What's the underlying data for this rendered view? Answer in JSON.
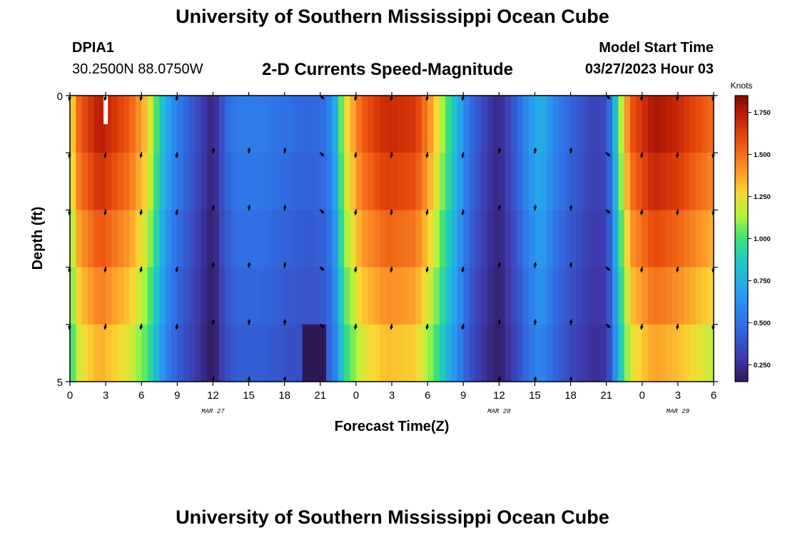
{
  "header": {
    "title": "University of Southern Mississippi Ocean Cube",
    "station_id": "DPIA1",
    "station_coords": "30.2500N  88.0750W",
    "chart_subtitle": "2-D Currents Speed-Magnitude",
    "model_start_label": "Model Start Time",
    "model_start_value": "03/27/2023 Hour 03"
  },
  "footer": {
    "title": "University of Southern Mississippi Ocean Cube"
  },
  "chart_data": {
    "type": "heatmap",
    "title": "2-D Currents Speed-Magnitude",
    "xlabel": "Forecast Time(Z)",
    "ylabel": "Depth (ft)",
    "x_hours": [
      0,
      3,
      6,
      9,
      12,
      15,
      18,
      21,
      24,
      27,
      30,
      33,
      36,
      39,
      42,
      45,
      48,
      51,
      54
    ],
    "xtick_labels": [
      "0",
      "3",
      "6",
      "9",
      "12",
      "15",
      "18",
      "21",
      "0",
      "3",
      "6",
      "9",
      "12",
      "15",
      "18",
      "21",
      "0",
      "3",
      "6"
    ],
    "date_labels": [
      {
        "text": "MAR 27",
        "hour": 12
      },
      {
        "text": "MAR 28",
        "hour": 36
      },
      {
        "text": "MAR 29",
        "hour": 51
      }
    ],
    "ylim": [
      0,
      5
    ],
    "ytick_labels": [
      "0",
      "5"
    ],
    "depth_levels": 5,
    "colorbar": {
      "label": "Knots",
      "min": 0.15,
      "max": 1.85,
      "ticks": [
        0.25,
        0.5,
        0.75,
        1.0,
        1.25,
        1.5,
        1.75
      ],
      "tick_labels": [
        "0.250",
        "0.500",
        "0.750",
        "1.000",
        "1.250",
        "1.500",
        "1.750"
      ]
    },
    "time_speed_knots": [
      {
        "t": 0.0,
        "s": 1.2
      },
      {
        "t": 0.8,
        "s": 1.55
      },
      {
        "t": 2.5,
        "s": 1.75
      },
      {
        "t": 5.0,
        "s": 1.55
      },
      {
        "t": 6.5,
        "s": 1.3
      },
      {
        "t": 7.3,
        "s": 1.0
      },
      {
        "t": 8.0,
        "s": 0.75
      },
      {
        "t": 9.0,
        "s": 0.55
      },
      {
        "t": 10.5,
        "s": 0.38
      },
      {
        "t": 11.5,
        "s": 0.25
      },
      {
        "t": 12.0,
        "s": 0.2
      },
      {
        "t": 13.0,
        "s": 0.45
      },
      {
        "t": 14.0,
        "s": 0.55
      },
      {
        "t": 16.0,
        "s": 0.55
      },
      {
        "t": 18.0,
        "s": 0.5
      },
      {
        "t": 20.0,
        "s": 0.46
      },
      {
        "t": 21.5,
        "s": 0.5
      },
      {
        "t": 22.3,
        "s": 0.75
      },
      {
        "t": 23.0,
        "s": 1.2
      },
      {
        "t": 24.5,
        "s": 1.55
      },
      {
        "t": 26.5,
        "s": 1.7
      },
      {
        "t": 29.0,
        "s": 1.65
      },
      {
        "t": 30.5,
        "s": 1.35
      },
      {
        "t": 31.5,
        "s": 1.05
      },
      {
        "t": 32.5,
        "s": 0.78
      },
      {
        "t": 33.5,
        "s": 0.5
      },
      {
        "t": 35.0,
        "s": 0.3
      },
      {
        "t": 36.0,
        "s": 0.22
      },
      {
        "t": 37.5,
        "s": 0.45
      },
      {
        "t": 38.5,
        "s": 0.65
      },
      {
        "t": 39.5,
        "s": 0.78
      },
      {
        "t": 40.5,
        "s": 0.6
      },
      {
        "t": 42.0,
        "s": 0.45
      },
      {
        "t": 44.0,
        "s": 0.32
      },
      {
        "t": 45.0,
        "s": 0.35
      },
      {
        "t": 45.5,
        "s": 0.6
      },
      {
        "t": 46.0,
        "s": 1.0
      },
      {
        "t": 47.0,
        "s": 1.55
      },
      {
        "t": 49.0,
        "s": 1.78
      },
      {
        "t": 51.0,
        "s": 1.7
      },
      {
        "t": 54.0,
        "s": 1.5
      }
    ],
    "depth_speed_factor": [
      1.0,
      0.96,
      0.9,
      0.84,
      0.78,
      0.68
    ],
    "deep_eddy": {
      "t_start": 19.5,
      "t_end": 21.5,
      "level": 5,
      "speed_knots": 0.15
    },
    "arrow_columns_hours": [
      0,
      3,
      6,
      9,
      12,
      15,
      18,
      21,
      24,
      27,
      30,
      33,
      36,
      39,
      42,
      45,
      48,
      51,
      54
    ],
    "arrow_rows_depth": [
      0,
      1,
      2,
      3,
      4,
      5
    ],
    "arrow_directions": [
      "down",
      "down",
      "down",
      "down",
      "up",
      "up",
      "up",
      "down-right",
      "down",
      "down",
      "down",
      "down",
      "up",
      "up",
      "up",
      "down-right",
      "down",
      "down",
      "down"
    ],
    "no_data_gap": {
      "hour": 3,
      "depth_from": 0,
      "depth_to": 0.5
    }
  }
}
